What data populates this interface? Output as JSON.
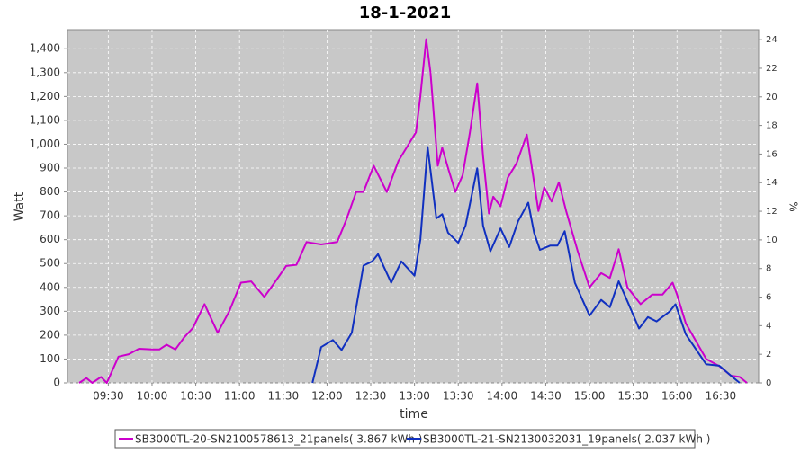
{
  "chart_data": {
    "type": "line",
    "title": "18-1-2021",
    "x_label": "time",
    "y_label": "Watt",
    "y2_label": "%",
    "xlim": [
      "09:02",
      "16:56"
    ],
    "xticks": [
      "09:30",
      "10:00",
      "10:30",
      "11:00",
      "11:30",
      "12:00",
      "12:30",
      "13:00",
      "13:30",
      "14:00",
      "14:30",
      "15:00",
      "15:30",
      "16:00",
      "16:30"
    ],
    "ylim": [
      0,
      1480
    ],
    "yticks": [
      0,
      100,
      200,
      300,
      400,
      500,
      600,
      700,
      800,
      900,
      {
        "value": 1000,
        "label": "1,000"
      },
      {
        "value": 1100,
        "label": "1,100"
      },
      {
        "value": 1200,
        "label": "1,200"
      },
      {
        "value": 1300,
        "label": "1,300"
      },
      {
        "value": 1400,
        "label": "1,400"
      }
    ],
    "y2lim": [
      0,
      24.7
    ],
    "y2ticks": [
      0,
      2,
      4,
      6,
      8,
      10,
      12,
      14,
      16,
      18,
      20,
      22,
      24
    ],
    "grid": true,
    "legend": "bottom",
    "series": [
      {
        "name": "SB3000TL-20-SN2100578613_21panels( 3.867 kWh )",
        "color": "#cc00cc",
        "x": [
          "09:10",
          "09:15",
          "09:19",
          "09:25",
          "09:29",
          "09:37",
          "09:44",
          "09:51",
          "10:00",
          "10:05",
          "10:10",
          "10:16",
          "10:22",
          "10:28",
          "10:36",
          "10:45",
          "10:53",
          "11:01",
          "11:08",
          "11:17",
          "11:24",
          "11:32",
          "11:39",
          "11:46",
          "11:56",
          "12:07",
          "12:13",
          "12:20",
          "12:25",
          "12:32",
          "12:41",
          "12:49",
          "12:56",
          "13:01",
          "13:04",
          "13:08",
          "13:11",
          "13:16",
          "13:19",
          "13:23",
          "13:28",
          "13:33",
          "13:38",
          "13:43",
          "13:47",
          "13:51",
          "13:54",
          "13:59",
          "14:04",
          "14:10",
          "14:17",
          "14:21",
          "14:25",
          "14:29",
          "14:34",
          "14:39",
          "14:44",
          "14:52",
          "15:00",
          "15:08",
          "15:14",
          "15:20",
          "15:26",
          "15:35",
          "15:43",
          "15:50",
          "15:57",
          "16:00",
          "16:06",
          "16:20",
          "16:29",
          "16:37",
          "16:43",
          "16:48"
        ],
        "values": [
          0,
          20,
          0,
          25,
          0,
          110,
          120,
          143,
          140,
          140,
          160,
          140,
          190,
          230,
          330,
          210,
          300,
          420,
          425,
          360,
          420,
          490,
          495,
          590,
          580,
          590,
          680,
          800,
          800,
          910,
          800,
          930,
          1000,
          1050,
          1200,
          1440,
          1300,
          910,
          985,
          900,
          800,
          870,
          1050,
          1255,
          950,
          710,
          780,
          740,
          860,
          920,
          1040,
          880,
          720,
          820,
          760,
          840,
          720,
          550,
          400,
          460,
          440,
          560,
          400,
          330,
          370,
          370,
          420,
          370,
          250,
          100,
          70,
          30,
          25,
          0
        ]
      },
      {
        "name": "SB3000TL-21-SN2130032031_19panels( 2.037 kWh )",
        "color": "#1030c0",
        "axis": "y2",
        "x": [
          "11:50",
          "11:56",
          "12:04",
          "12:10",
          "12:17",
          "12:25",
          "12:31",
          "12:35",
          "12:44",
          "12:51",
          "13:00",
          "13:04",
          "13:09",
          "13:15",
          "13:19",
          "13:23",
          "13:30",
          "13:35",
          "13:43",
          "13:47",
          "13:52",
          "13:59",
          "14:05",
          "14:11",
          "14:18",
          "14:22",
          "14:26",
          "14:33",
          "14:38",
          "14:43",
          "14:50",
          "15:00",
          "15:08",
          "15:14",
          "15:20",
          "15:26",
          "15:34",
          "15:40",
          "15:46",
          "15:55",
          "15:59",
          "16:06",
          "16:20",
          "16:29",
          "16:37",
          "16:43"
        ],
        "values": [
          0,
          2.5,
          3,
          2.3,
          3.5,
          8.2,
          8.5,
          9,
          7,
          8.5,
          7.5,
          10,
          16.5,
          11.5,
          11.8,
          10.5,
          9.8,
          11,
          15,
          11,
          9.2,
          10.8,
          9.5,
          11.3,
          12.6,
          10.5,
          9.3,
          9.6,
          9.6,
          10.6,
          7,
          4.7,
          5.8,
          5.3,
          7.1,
          5.7,
          3.8,
          4.6,
          4.3,
          5,
          5.5,
          3.4,
          1.3,
          1.2,
          0.5,
          0
        ]
      }
    ]
  }
}
